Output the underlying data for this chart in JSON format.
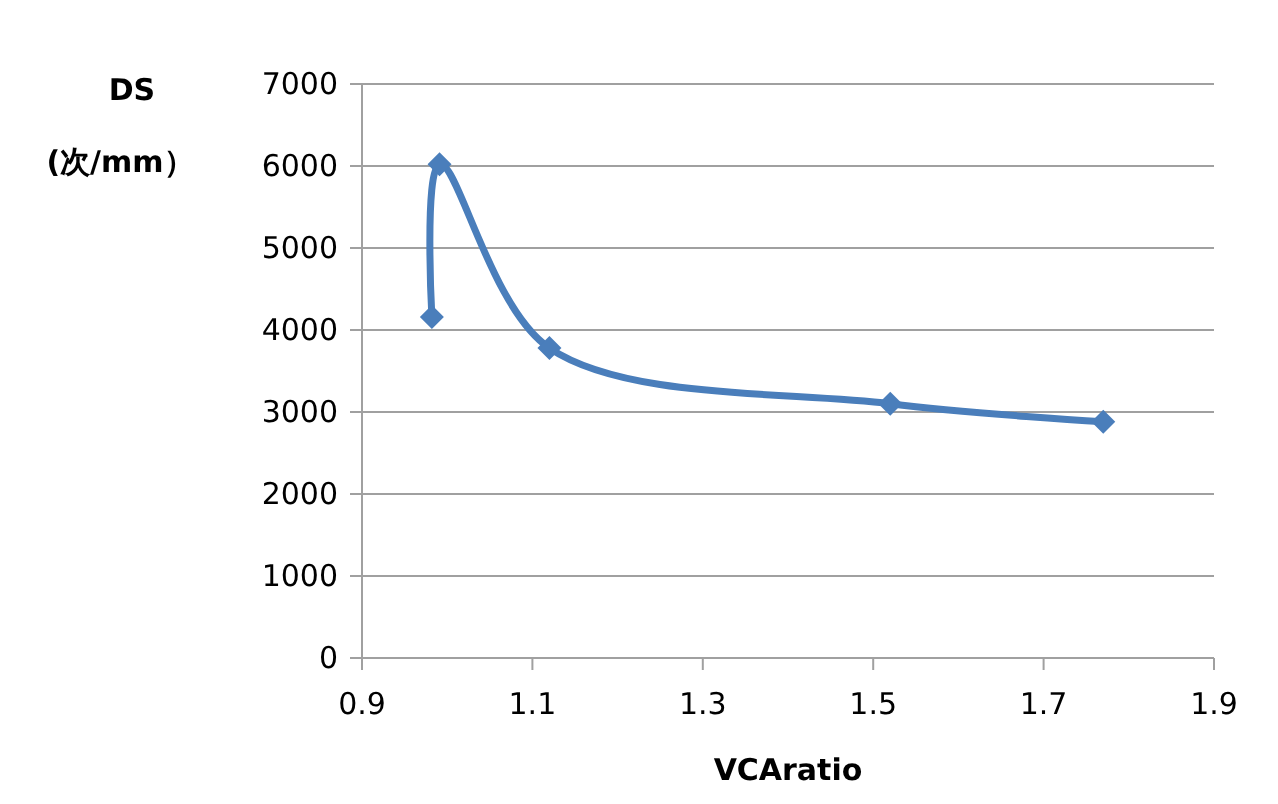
{
  "chart_data": {
    "type": "line",
    "xlabel": "VCAratio",
    "ylabel": "DS (次/mm）",
    "x": [
      0.982,
      0.991,
      1.12,
      1.52,
      1.77
    ],
    "series": [
      {
        "color": "#4a7ebb",
        "values": [
          4160,
          6020,
          3780,
          3100,
          2880
        ]
      }
    ],
    "xlim": [
      0.9,
      1.9
    ],
    "xticks": [
      0.9,
      1.1,
      1.3,
      1.5,
      1.7,
      1.9
    ],
    "ylim": [
      0,
      7000
    ],
    "yticks": [
      0,
      1000,
      2000,
      3000,
      4000,
      5000,
      6000,
      7000
    ],
    "grid": "y",
    "marker": "diamond",
    "line_style": "solid"
  }
}
